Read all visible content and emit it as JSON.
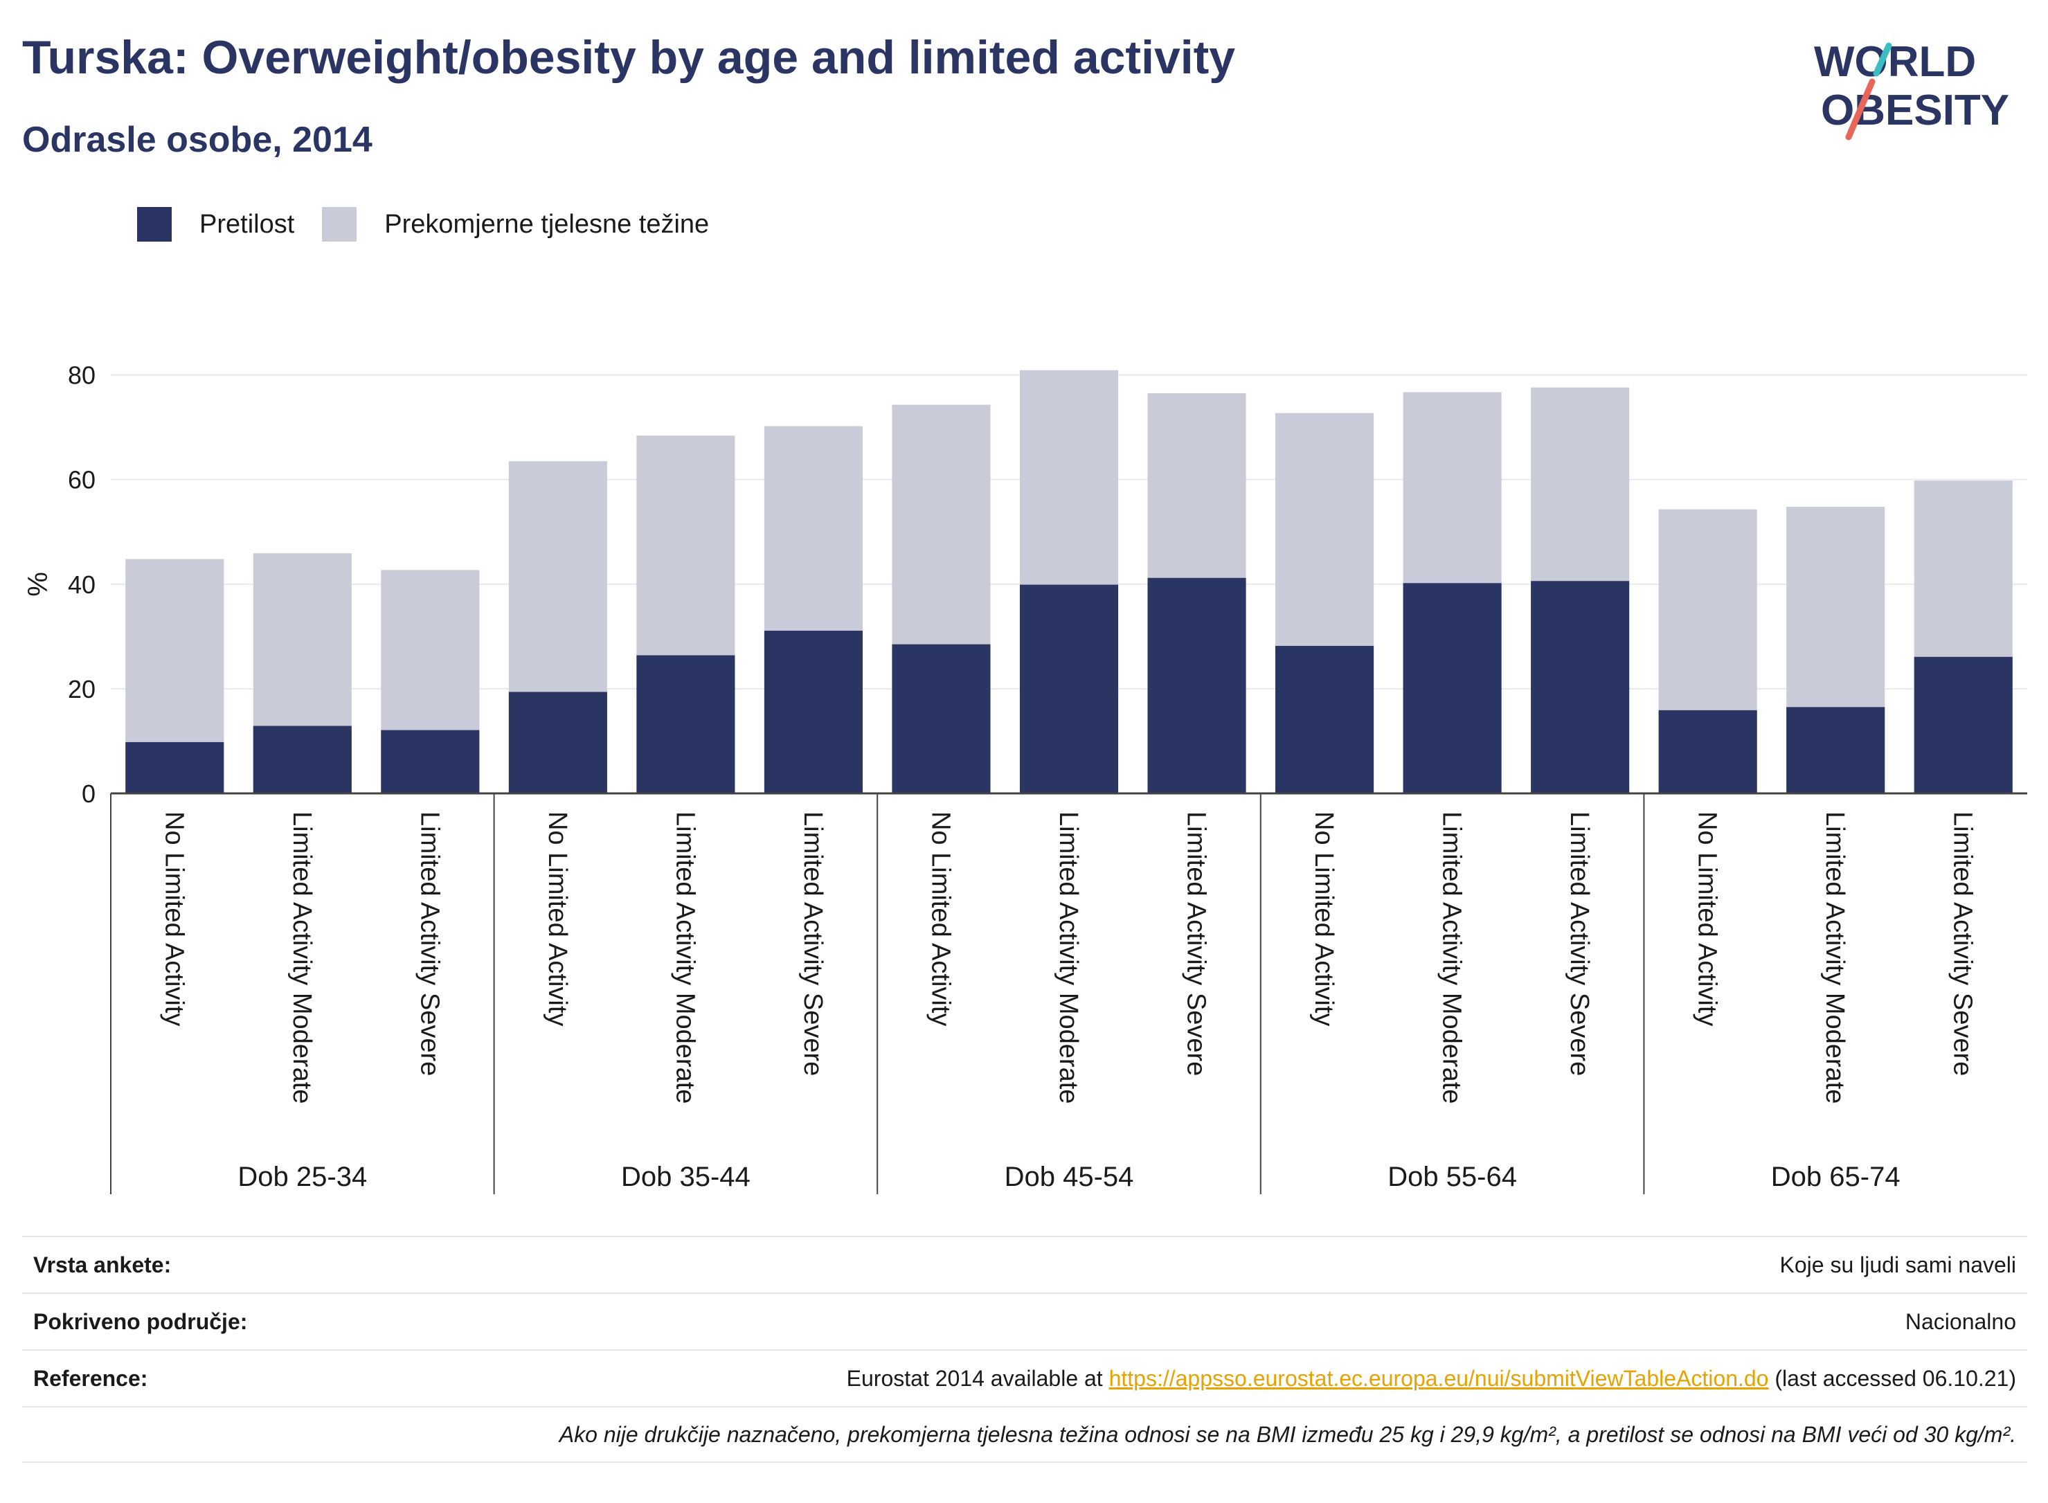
{
  "header": {
    "title": "Turska: Overweight/obesity by age and limited activity",
    "subtitle": "Odrasle osobe, 2014"
  },
  "logo": {
    "line1": "WORLD",
    "line2": "OBESITY",
    "accent1": "#3cbdc4",
    "accent2": "#e8655a"
  },
  "colors": {
    "obesity": "#2a3563",
    "overweight": "#cacbd8",
    "grid": "#e8eaf0",
    "text": "#2a3563"
  },
  "legend": [
    {
      "label": "Pretilost",
      "color": "#2a3563"
    },
    {
      "label": "Prekomjerne tjelesne težine",
      "color": "#cacbd8"
    }
  ],
  "chart_data": {
    "type": "bar",
    "stacked": false,
    "ylabel": "%",
    "ylim": [
      0,
      90
    ],
    "yticks": [
      0,
      20,
      40,
      60,
      80
    ],
    "grid": true,
    "legend_position": "top-left",
    "groups": [
      {
        "label": "Dob 25-34",
        "categories": [
          "No Limited Activity",
          "Limited Activity Moderate",
          "Limited Activity Severe"
        ],
        "obesity": [
          9.8,
          12.9,
          12.1
        ],
        "overweight": [
          44.8,
          45.9,
          42.7
        ]
      },
      {
        "label": "Dob 35-44",
        "categories": [
          "No Limited Activity",
          "Limited Activity Moderate",
          "Limited Activity Severe"
        ],
        "obesity": [
          19.4,
          26.4,
          31.1
        ],
        "overweight": [
          63.5,
          68.4,
          70.2
        ]
      },
      {
        "label": "Dob 45-54",
        "categories": [
          "No Limited Activity",
          "Limited Activity Moderate",
          "Limited Activity Severe"
        ],
        "obesity": [
          28.5,
          39.9,
          41.2
        ],
        "overweight": [
          74.3,
          80.9,
          76.5
        ]
      },
      {
        "label": "Dob 55-64",
        "categories": [
          "No Limited Activity",
          "Limited Activity Moderate",
          "Limited Activity Severe"
        ],
        "obesity": [
          28.2,
          40.2,
          40.6
        ],
        "overweight": [
          72.7,
          76.7,
          77.6
        ]
      },
      {
        "label": "Dob 65-74",
        "categories": [
          "No Limited Activity",
          "Limited Activity Moderate",
          "Limited Activity Severe"
        ],
        "obesity": [
          15.9,
          16.5,
          26.1
        ],
        "overweight": [
          54.3,
          54.8,
          59.8
        ]
      }
    ]
  },
  "info": {
    "survey_label": "Vrsta ankete:",
    "survey_value": "Koje su ljudi sami naveli",
    "coverage_label": "Pokriveno područje:",
    "coverage_value": "Nacionalno",
    "reference_label": "Reference:",
    "reference_prefix": "Eurostat 2014 available at ",
    "reference_link": "https://appsso.eurostat.ec.europa.eu/nui/submitViewTableAction.do",
    "reference_suffix": " (last accessed 06.10.21)",
    "note": "Ako nije drukčije naznačeno, prekomjerna tjelesna težina odnosi se na BMI između 25 kg i 29,9 kg/m², a pretilost se odnosi na BMI veći od 30 kg/m²."
  }
}
